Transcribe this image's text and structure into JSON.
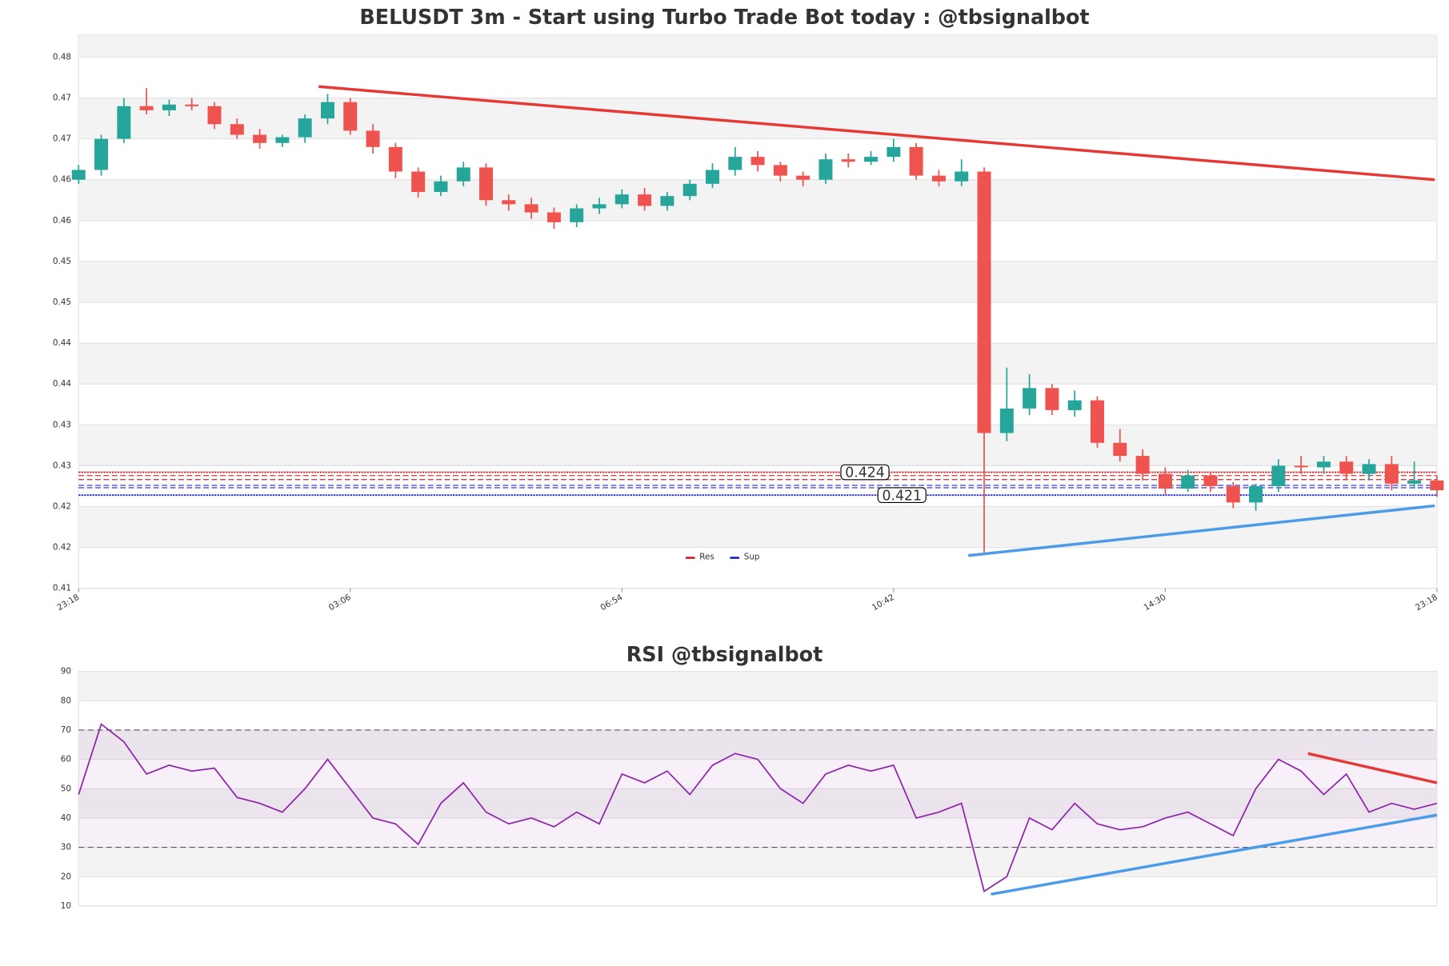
{
  "chart_data": [
    {
      "type": "candlestick",
      "title": "BELUSDT 3m - Start using Turbo Trade Bot today : @tbsignalbot",
      "categories": [
        "23:18",
        null,
        null,
        null,
        null,
        null,
        null,
        null,
        null,
        null,
        null,
        null,
        "03:06",
        null,
        null,
        null,
        null,
        null,
        null,
        null,
        null,
        null,
        null,
        null,
        "06:54",
        null,
        null,
        null,
        null,
        null,
        null,
        null,
        null,
        null,
        null,
        null,
        "10:42",
        null,
        null,
        null,
        null,
        null,
        null,
        null,
        null,
        null,
        null,
        null,
        "14:30",
        null,
        null,
        null,
        null,
        null,
        null,
        null,
        null,
        null,
        null,
        null,
        "23:18"
      ],
      "open": [
        0.46,
        0.4612,
        0.465,
        0.469,
        0.4685,
        0.4692,
        0.469,
        0.4668,
        0.4655,
        0.4645,
        0.4652,
        0.4675,
        0.4695,
        0.466,
        0.464,
        0.461,
        0.4585,
        0.4598,
        0.4615,
        0.4575,
        0.457,
        0.456,
        0.4548,
        0.4565,
        0.457,
        0.4582,
        0.4568,
        0.458,
        0.4595,
        0.4612,
        0.4628,
        0.4618,
        0.4605,
        0.46,
        0.4625,
        0.4622,
        0.4628,
        0.464,
        0.4605,
        0.4598,
        0.461,
        0.429,
        0.432,
        0.4345,
        0.4318,
        0.433,
        0.4278,
        0.4262,
        0.424,
        0.4222,
        0.4238,
        0.4225,
        0.4205,
        0.4225,
        0.425,
        0.4248,
        0.4255,
        0.424,
        0.4252,
        0.4228,
        0.4232
      ],
      "high": [
        0.4618,
        0.4655,
        0.47,
        0.4712,
        0.4698,
        0.47,
        0.4695,
        0.4675,
        0.4662,
        0.4655,
        0.468,
        0.4705,
        0.47,
        0.4668,
        0.4645,
        0.4615,
        0.4605,
        0.4622,
        0.462,
        0.4582,
        0.4578,
        0.4566,
        0.457,
        0.4578,
        0.4588,
        0.459,
        0.4585,
        0.46,
        0.462,
        0.464,
        0.4635,
        0.4622,
        0.461,
        0.4632,
        0.4632,
        0.4635,
        0.465,
        0.4645,
        0.4612,
        0.4625,
        0.4615,
        0.437,
        0.4362,
        0.435,
        0.4342,
        0.4335,
        0.4295,
        0.427,
        0.4248,
        0.4245,
        0.4242,
        0.423,
        0.4228,
        0.4258,
        0.4262,
        0.4262,
        0.4262,
        0.4258,
        0.4262,
        0.4255,
        0.4238
      ],
      "low": [
        0.4595,
        0.4605,
        0.4645,
        0.468,
        0.4678,
        0.4685,
        0.4662,
        0.465,
        0.4638,
        0.464,
        0.4645,
        0.4668,
        0.4655,
        0.4632,
        0.4602,
        0.4578,
        0.458,
        0.4592,
        0.4568,
        0.4562,
        0.4552,
        0.454,
        0.4542,
        0.4558,
        0.4565,
        0.4562,
        0.4562,
        0.4575,
        0.459,
        0.4605,
        0.461,
        0.4598,
        0.4592,
        0.4595,
        0.4615,
        0.4618,
        0.4622,
        0.46,
        0.4592,
        0.4592,
        0.4142,
        0.428,
        0.4312,
        0.4312,
        0.431,
        0.4272,
        0.4255,
        0.4232,
        0.4215,
        0.4218,
        0.4218,
        0.4198,
        0.4195,
        0.4218,
        0.424,
        0.424,
        0.4232,
        0.4232,
        0.422,
        0.4222,
        0.4212
      ],
      "close": [
        0.4612,
        0.465,
        0.469,
        0.4685,
        0.4692,
        0.469,
        0.4668,
        0.4655,
        0.4645,
        0.4652,
        0.4675,
        0.4695,
        0.466,
        0.464,
        0.461,
        0.4585,
        0.4598,
        0.4615,
        0.4575,
        0.457,
        0.456,
        0.4548,
        0.4565,
        0.457,
        0.4582,
        0.4568,
        0.458,
        0.4595,
        0.4612,
        0.4628,
        0.4618,
        0.4605,
        0.46,
        0.4625,
        0.4622,
        0.4628,
        0.464,
        0.4605,
        0.4598,
        0.461,
        0.429,
        0.432,
        0.4345,
        0.4318,
        0.433,
        0.4278,
        0.4262,
        0.424,
        0.4222,
        0.4238,
        0.4225,
        0.4205,
        0.4225,
        0.425,
        0.4248,
        0.4255,
        0.424,
        0.4252,
        0.4228,
        0.4232,
        0.422
      ],
      "up_color": "#26a69a",
      "down_color": "#ef5350",
      "ylim": [
        0.41,
        0.4777
      ],
      "yticks": [
        {
          "value": 0.41,
          "label": "0.41"
        },
        {
          "value": 0.415,
          "label": "0.42"
        },
        {
          "value": 0.42,
          "label": "0.42"
        },
        {
          "value": 0.425,
          "label": "0.43"
        },
        {
          "value": 0.43,
          "label": "0.43"
        },
        {
          "value": 0.435,
          "label": "0.44"
        },
        {
          "value": 0.44,
          "label": "0.44"
        },
        {
          "value": 0.445,
          "label": "0.45"
        },
        {
          "value": 0.45,
          "label": "0.45"
        },
        {
          "value": 0.455,
          "label": "0.46"
        },
        {
          "value": 0.46,
          "label": "0.46"
        },
        {
          "value": 0.465,
          "label": "0.47"
        },
        {
          "value": 0.47,
          "label": "0.47"
        },
        {
          "value": 0.475,
          "label": "0.48"
        }
      ],
      "levels": [
        {
          "name": "Res",
          "color": "#cc0000",
          "values": [
            0.4242,
            0.4238,
            0.4233
          ],
          "label": "0.424"
        },
        {
          "name": "Sup",
          "color": "#0000cc",
          "values": [
            0.4214,
            0.4223,
            0.4226
          ],
          "label": "0.421"
        }
      ],
      "legend": "lower center",
      "trendlines": [
        {
          "color": "#e53935",
          "x": [
            10.6,
            59.9
          ],
          "y": [
            0.4714,
            0.46
          ]
        },
        {
          "color": "#4a9be8",
          "x": [
            39.3,
            59.9
          ],
          "y": [
            0.414,
            0.4201
          ]
        }
      ]
    },
    {
      "type": "line",
      "title": "RSI @tbsignalbot",
      "color": "#8e24aa",
      "values": [
        48,
        72,
        66,
        55,
        58,
        56,
        57,
        47,
        45,
        42,
        50,
        60,
        50,
        40,
        38,
        31,
        45,
        52,
        42,
        38,
        40,
        37,
        42,
        38,
        55,
        52,
        56,
        48,
        58,
        62,
        60,
        50,
        45,
        55,
        58,
        56,
        58,
        40,
        42,
        45,
        15,
        20,
        40,
        36,
        45,
        38,
        36,
        37,
        40,
        42,
        38,
        34,
        50,
        60,
        56,
        48,
        55,
        42,
        45,
        43,
        45
      ],
      "ylim": [
        10,
        90
      ],
      "yticks": [
        10,
        20,
        30,
        40,
        50,
        60,
        70,
        80,
        90
      ],
      "bands": [
        30,
        70
      ],
      "trendlines": [
        {
          "color": "#e53935",
          "x": [
            54.3,
            60
          ],
          "y": [
            62,
            52
          ]
        },
        {
          "color": "#4a9be8",
          "x": [
            40.3,
            60
          ],
          "y": [
            14,
            41
          ]
        }
      ]
    }
  ]
}
